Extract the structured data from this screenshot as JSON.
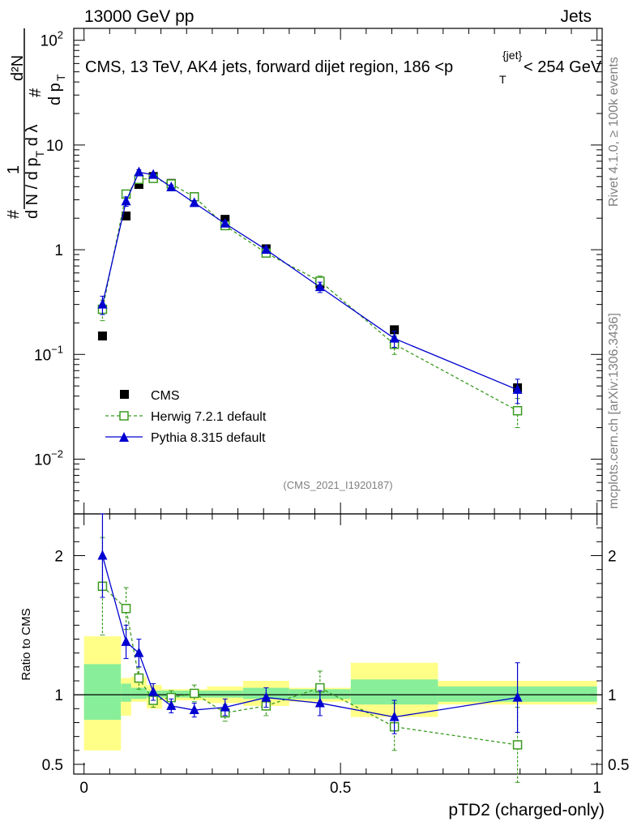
{
  "header": {
    "left": "13000 GeV pp",
    "right": "Jets"
  },
  "side": {
    "rivet": "Rivet 4.1.0, ≥ 100k events",
    "mcplots": "mcplots.cern.ch [arXiv:1306.3436]"
  },
  "chart_data": [
    {
      "type": "scatter",
      "panel": "main",
      "title_main": "CMS, 13 TeV, AK4 jets, forward dijet region, 186 <p",
      "title_sup": "{jet}",
      "title_sub": "T",
      "title_end": "< 254 GeV",
      "ylabel": "1/N dN/dpT dλ",
      "yscale": "log",
      "ylim": [
        0.003,
        130
      ],
      "xlim": [
        -0.02,
        1.01
      ],
      "yticks": [
        {
          "value": 100,
          "base": "10",
          "exp": "2"
        },
        {
          "value": 10,
          "base": "10",
          "exp": ""
        },
        {
          "value": 1,
          "base": "1",
          "exp": ""
        },
        {
          "value": 0.1,
          "base": "10",
          "exp": "−1"
        },
        {
          "value": 0.01,
          "base": "10",
          "exp": "−2"
        }
      ],
      "watermark": "(CMS_2021_I1920187)",
      "x": [
        0.036,
        0.082,
        0.107,
        0.135,
        0.17,
        0.215,
        0.275,
        0.355,
        0.46,
        0.605,
        0.845
      ],
      "series": [
        {
          "name": "CMS",
          "color": "#000000",
          "marker": "square-filled",
          "values": [
            0.15,
            2.1,
            4.2,
            5.0,
            4.3,
            3.2,
            1.95,
            1.02,
            0.47,
            0.172,
            0.048
          ],
          "err": [
            0.005,
            0.05,
            0.1,
            0.1,
            0.1,
            0.08,
            0.05,
            0.03,
            0.02,
            0.008,
            0.004
          ]
        },
        {
          "name": "Herwig 7.2.1 default",
          "color": "#3a9a20",
          "marker": "square-open",
          "line": "dashed",
          "values": [
            0.27,
            3.4,
            4.7,
            4.8,
            4.25,
            3.2,
            1.7,
            0.93,
            0.5,
            0.125,
            0.029
          ],
          "err": [
            0.06,
            0.25,
            0.3,
            0.2,
            0.2,
            0.15,
            0.1,
            0.07,
            0.06,
            0.025,
            0.009
          ]
        },
        {
          "name": "Pythia 8.315 default",
          "color": "#0000d0",
          "marker": "triangle-filled",
          "line": "solid",
          "values": [
            0.3,
            2.9,
            5.5,
            5.2,
            3.95,
            2.8,
            1.78,
            1.0,
            0.44,
            0.142,
            0.046
          ],
          "err": [
            0.06,
            0.3,
            0.3,
            0.2,
            0.2,
            0.15,
            0.1,
            0.07,
            0.05,
            0.025,
            0.012
          ]
        }
      ]
    },
    {
      "type": "scatter",
      "panel": "ratio",
      "ylabel": "Ratio to CMS",
      "xlabel": "pTD2 (charged-only)",
      "ylim": [
        0.43,
        2.3
      ],
      "xlim": [
        -0.02,
        1.01
      ],
      "yticks": [
        {
          "value": 0.5,
          "label": "0.5"
        },
        {
          "value": 1,
          "label": "1"
        },
        {
          "value": 2,
          "label": "2"
        }
      ],
      "xticks": [
        {
          "value": 0,
          "label": "0"
        },
        {
          "value": 0.5,
          "label": "0.5"
        },
        {
          "value": 1,
          "label": "1"
        }
      ],
      "bins": [
        0.0,
        0.072,
        0.092,
        0.122,
        0.152,
        0.19,
        0.24,
        0.31,
        0.4,
        0.52,
        0.69,
        1.0
      ],
      "band_green": [
        [
          0.82,
          1.22
        ],
        [
          0.95,
          1.08
        ],
        [
          0.97,
          1.05
        ],
        [
          0.98,
          1.03
        ],
        [
          0.98,
          1.03
        ],
        [
          0.98,
          1.03
        ],
        [
          0.98,
          1.03
        ],
        [
          0.97,
          1.05
        ],
        [
          0.97,
          1.04
        ],
        [
          0.93,
          1.11
        ],
        [
          0.95,
          1.06
        ]
      ],
      "band_yellow": [
        [
          0.6,
          1.42
        ],
        [
          0.85,
          1.12
        ],
        [
          0.95,
          1.13
        ],
        [
          0.9,
          1.07
        ],
        [
          0.96,
          1.04
        ],
        [
          0.96,
          1.04
        ],
        [
          0.94,
          1.06
        ],
        [
          0.92,
          1.1
        ],
        [
          0.95,
          1.05
        ],
        [
          0.84,
          1.23
        ],
        [
          0.93,
          1.1
        ]
      ],
      "x": [
        0.036,
        0.082,
        0.107,
        0.135,
        0.17,
        0.215,
        0.275,
        0.355,
        0.46,
        0.605,
        0.845
      ],
      "series": [
        {
          "name": "Herwig 7.2.1 default",
          "color": "#3a9a20",
          "marker": "square-open",
          "line": "dashed",
          "values": [
            1.78,
            1.62,
            1.12,
            0.96,
            0.98,
            1.01,
            0.87,
            0.92,
            1.05,
            0.77,
            0.64
          ],
          "err": [
            0.35,
            0.15,
            0.08,
            0.05,
            0.05,
            0.06,
            0.06,
            0.07,
            0.12,
            0.17,
            0.27
          ]
        },
        {
          "name": "Pythia 8.315 default",
          "color": "#0000d0",
          "marker": "triangle-filled",
          "line": "solid",
          "values": [
            2.0,
            1.38,
            1.3,
            1.02,
            0.92,
            0.89,
            0.91,
            0.98,
            0.94,
            0.84,
            0.98
          ],
          "err": [
            0.3,
            0.12,
            0.1,
            0.06,
            0.05,
            0.05,
            0.06,
            0.07,
            0.09,
            0.12,
            0.25
          ]
        }
      ]
    }
  ]
}
